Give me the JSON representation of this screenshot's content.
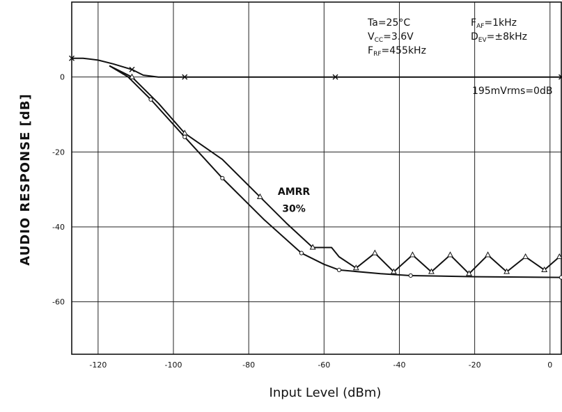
{
  "chart_data": {
    "type": "line",
    "xlabel": "Input Level (dBm)",
    "ylabel": "AUDIO RESPONSE [dB]",
    "xlim": [
      -127,
      3
    ],
    "ylim": [
      -74,
      20
    ],
    "xticks": [
      -120,
      -100,
      -80,
      -60,
      -40,
      -20,
      0
    ],
    "yticks": [
      0,
      -20,
      -40,
      -60
    ],
    "grid": true,
    "conditions": [
      {
        "main": "Ta",
        "sub": "",
        "rest": "=25°C"
      },
      {
        "main": "V",
        "sub": "CC",
        "rest": "=3.6V"
      },
      {
        "main": "F",
        "sub": "RF",
        "rest": "=455kHz"
      },
      {
        "main": "F",
        "sub": "AF",
        "rest": "=1kHz"
      },
      {
        "main": "D",
        "sub": "EV",
        "rest": "=±8kHz"
      }
    ],
    "annotations": [
      {
        "text": "195mVrms=0dB",
        "x": -10,
        "y": -4.5
      },
      {
        "text": "AMRR",
        "x": -68,
        "y": -31.5
      },
      {
        "text": "30%",
        "x": -68,
        "y": -36
      }
    ],
    "series": [
      {
        "marker": "x",
        "points": [
          [
            -127,
            5
          ],
          [
            -124,
            5
          ],
          [
            -120,
            4.5
          ],
          [
            -116,
            3.5
          ],
          [
            -111,
            2
          ],
          [
            -108,
            0.5
          ],
          [
            -104,
            0
          ],
          [
            -97,
            0
          ],
          [
            -80,
            0
          ],
          [
            -57,
            0
          ],
          [
            -40,
            0
          ],
          [
            -20,
            0
          ],
          [
            0,
            0
          ],
          [
            3,
            0
          ]
        ],
        "marked": [
          [
            -127,
            5
          ],
          [
            -111,
            2
          ],
          [
            -97,
            0
          ],
          [
            -57,
            0
          ],
          [
            3,
            0
          ]
        ]
      },
      {
        "marker": "triangle",
        "points": [
          [
            -117,
            3
          ],
          [
            -111,
            0
          ],
          [
            -104,
            -7
          ],
          [
            -97,
            -15
          ],
          [
            -87,
            -22
          ],
          [
            -77,
            -32
          ],
          [
            -70,
            -39
          ],
          [
            -63,
            -45.5
          ],
          [
            -58,
            -45.5
          ],
          [
            -56,
            -48
          ],
          [
            -51.5,
            -51
          ],
          [
            -46.5,
            -47
          ],
          [
            -41.5,
            -52
          ],
          [
            -36.5,
            -47.5
          ],
          [
            -31.5,
            -52
          ],
          [
            -26.5,
            -47.5
          ],
          [
            -21.5,
            -52.5
          ],
          [
            -16.5,
            -47.5
          ],
          [
            -11.5,
            -52
          ],
          [
            -6.5,
            -48
          ],
          [
            -1.5,
            -51.5
          ],
          [
            2.5,
            -48
          ]
        ],
        "marked": [
          [
            -111,
            0
          ],
          [
            -97,
            -15
          ],
          [
            -77,
            -32
          ],
          [
            -63,
            -45.5
          ],
          [
            -51.5,
            -51
          ],
          [
            -46.5,
            -47
          ],
          [
            -41.5,
            -52
          ],
          [
            -36.5,
            -47.5
          ],
          [
            -31.5,
            -52
          ],
          [
            -26.5,
            -47.5
          ],
          [
            -21.5,
            -52.5
          ],
          [
            -16.5,
            -47.5
          ],
          [
            -11.5,
            -52
          ],
          [
            -6.5,
            -48
          ],
          [
            -1.5,
            -51.5
          ],
          [
            2.5,
            -48
          ]
        ]
      },
      {
        "marker": "circle",
        "points": [
          [
            -117,
            3
          ],
          [
            -112,
            0
          ],
          [
            -106,
            -6
          ],
          [
            -97,
            -16
          ],
          [
            -87,
            -27
          ],
          [
            -76,
            -38
          ],
          [
            -66,
            -47
          ],
          [
            -60,
            -50
          ],
          [
            -56,
            -51.5
          ],
          [
            -45,
            -52.5
          ],
          [
            -37,
            -53
          ],
          [
            -20,
            -53.3
          ],
          [
            3,
            -53.5
          ]
        ],
        "marked": [
          [
            -106,
            -6
          ],
          [
            -97,
            -16
          ],
          [
            -87,
            -27
          ],
          [
            -66,
            -47
          ],
          [
            -56,
            -51.5
          ],
          [
            -37,
            -53
          ],
          [
            3,
            -53.5
          ]
        ]
      }
    ]
  }
}
